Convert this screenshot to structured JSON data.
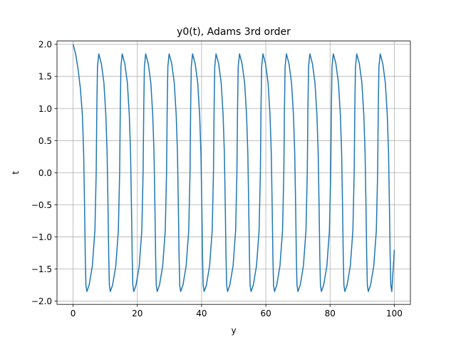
{
  "chart_data": {
    "type": "line",
    "title": "y0(t), Adams 3rd order",
    "xlabel": "y",
    "ylabel": "t",
    "xlim": [
      -5,
      105
    ],
    "ylim": [
      -2.05,
      2.05
    ],
    "xticks": [
      0,
      20,
      40,
      60,
      80,
      100
    ],
    "xtick_labels": [
      "0",
      "20",
      "40",
      "60",
      "80",
      "100"
    ],
    "yticks": [
      -2.0,
      -1.5,
      -1.0,
      -0.5,
      0.0,
      0.5,
      1.0,
      1.5,
      2.0
    ],
    "ytick_labels": [
      "−2.0",
      "−1.5",
      "−1.0",
      "−0.5",
      "0.0",
      "0.5",
      "1.0",
      "1.5",
      "2.0"
    ],
    "grid": true,
    "color": "#1f77b4",
    "series": [
      {
        "x": [
          0,
          0.8,
          1.6,
          2.3,
          2.9,
          3.3,
          3.6,
          3.8,
          4.0,
          4.3,
          5.0,
          6.0,
          6.8,
          7.2,
          7.4,
          7.6,
          8.0,
          8.8,
          9.6,
          10.2,
          10.6,
          10.9,
          11.1,
          11.3,
          11.6,
          12.3,
          13.3,
          14.1,
          14.5,
          14.7,
          14.9,
          15.3,
          16.1,
          16.9,
          17.5,
          17.9,
          18.2,
          18.4,
          18.6,
          18.9,
          19.6,
          20.6,
          21.4,
          21.8,
          22.0,
          22.2,
          22.6,
          23.4,
          24.2,
          24.8,
          25.2,
          25.5,
          25.7,
          25.9,
          26.2,
          26.9,
          27.9,
          28.7,
          29.1,
          29.3,
          29.5,
          29.9,
          30.7,
          31.5,
          32.1,
          32.5,
          32.8,
          33.0,
          33.2,
          33.5,
          34.2,
          35.2,
          36.0,
          36.4,
          36.6,
          36.8,
          37.2,
          38.0,
          38.8,
          39.4,
          39.8,
          40.1,
          40.3,
          40.5,
          40.8,
          41.5,
          42.5,
          43.3,
          43.7,
          43.9,
          44.1,
          44.5,
          45.3,
          46.1,
          46.7,
          47.1,
          47.4,
          47.6,
          47.8,
          48.1,
          48.8,
          49.8,
          50.6,
          51.0,
          51.2,
          51.4,
          51.8,
          52.6,
          53.4,
          54.0,
          54.4,
          54.7,
          54.9,
          55.1,
          55.4,
          56.1,
          57.1,
          57.9,
          58.3,
          58.5,
          58.7,
          59.1,
          59.9,
          60.7,
          61.3,
          61.7,
          62.0,
          62.2,
          62.4,
          62.7,
          63.4,
          64.4,
          65.2,
          65.6,
          65.8,
          66.0,
          66.4,
          67.2,
          68.0,
          68.6,
          69.0,
          69.3,
          69.5,
          69.7,
          70.0,
          70.7,
          71.7,
          72.5,
          72.9,
          73.1,
          73.3,
          73.7,
          74.5,
          75.3,
          75.9,
          76.3,
          76.6,
          76.8,
          77.0,
          77.3,
          78.0,
          79.0,
          79.8,
          80.2,
          80.4,
          80.6,
          81.0,
          81.8,
          82.6,
          83.2,
          83.6,
          83.9,
          84.1,
          84.3,
          84.6,
          85.3,
          86.3,
          87.1,
          87.5,
          87.7,
          87.9,
          88.3,
          89.1,
          89.9,
          90.5,
          90.9,
          91.2,
          91.4,
          91.6,
          91.9,
          92.6,
          93.6,
          94.4,
          94.8,
          95.0,
          95.2,
          95.6,
          96.4,
          97.2,
          97.8,
          98.2,
          98.5,
          98.7,
          98.9,
          99.2,
          100.0
        ],
        "y": [
          2.0,
          1.85,
          1.6,
          1.3,
          0.9,
          0.3,
          -0.6,
          -1.3,
          -1.75,
          -1.85,
          -1.75,
          -1.45,
          -0.9,
          0.0,
          1.0,
          1.65,
          1.85,
          1.7,
          1.4,
          0.9,
          0.3,
          -0.6,
          -1.3,
          -1.75,
          -1.85,
          -1.75,
          -1.45,
          -0.9,
          0.0,
          1.0,
          1.65,
          1.85,
          1.7,
          1.4,
          0.9,
          0.3,
          -0.6,
          -1.3,
          -1.75,
          -1.85,
          -1.75,
          -1.45,
          -0.9,
          0.0,
          1.0,
          1.65,
          1.85,
          1.7,
          1.4,
          0.9,
          0.3,
          -0.6,
          -1.3,
          -1.75,
          -1.85,
          -1.75,
          -1.45,
          -0.9,
          0.0,
          1.0,
          1.65,
          1.85,
          1.7,
          1.4,
          0.9,
          0.3,
          -0.6,
          -1.3,
          -1.75,
          -1.85,
          -1.75,
          -1.45,
          -0.9,
          0.0,
          1.0,
          1.65,
          1.85,
          1.7,
          1.4,
          0.9,
          0.3,
          -0.6,
          -1.3,
          -1.75,
          -1.85,
          -1.75,
          -1.45,
          -0.9,
          0.0,
          1.0,
          1.65,
          1.85,
          1.7,
          1.4,
          0.9,
          0.3,
          -0.6,
          -1.3,
          -1.75,
          -1.85,
          -1.75,
          -1.45,
          -0.9,
          0.0,
          1.0,
          1.65,
          1.85,
          1.7,
          1.4,
          0.9,
          0.3,
          -0.6,
          -1.3,
          -1.75,
          -1.85,
          -1.75,
          -1.45,
          -0.9,
          0.0,
          1.0,
          1.65,
          1.85,
          1.7,
          1.4,
          0.9,
          0.3,
          -0.6,
          -1.3,
          -1.75,
          -1.85,
          -1.75,
          -1.45,
          -0.9,
          0.0,
          1.0,
          1.65,
          1.85,
          1.7,
          1.4,
          0.9,
          0.3,
          -0.6,
          -1.3,
          -1.75,
          -1.85,
          -1.75,
          -1.45,
          -0.9,
          0.0,
          1.0,
          1.65,
          1.85,
          1.7,
          1.4,
          0.9,
          0.3,
          -0.6,
          -1.3,
          -1.75,
          -1.85,
          -1.75,
          -1.45,
          -0.9,
          0.0,
          1.0,
          1.65,
          1.85,
          1.7,
          1.4,
          0.9,
          0.3,
          -0.6,
          -1.3,
          -1.75,
          -1.85,
          -1.75,
          -1.45,
          -0.9,
          0.0,
          1.0,
          1.65,
          1.85,
          1.7,
          1.4,
          0.9,
          0.3,
          -0.6,
          -1.3,
          -1.75,
          -1.85,
          -1.75,
          -1.45,
          -0.9,
          0.0,
          1.0,
          1.65,
          1.85,
          1.7,
          1.4,
          0.9,
          0.3,
          -0.6,
          -1.3,
          -1.75,
          -1.85,
          -1.2
        ]
      }
    ]
  }
}
